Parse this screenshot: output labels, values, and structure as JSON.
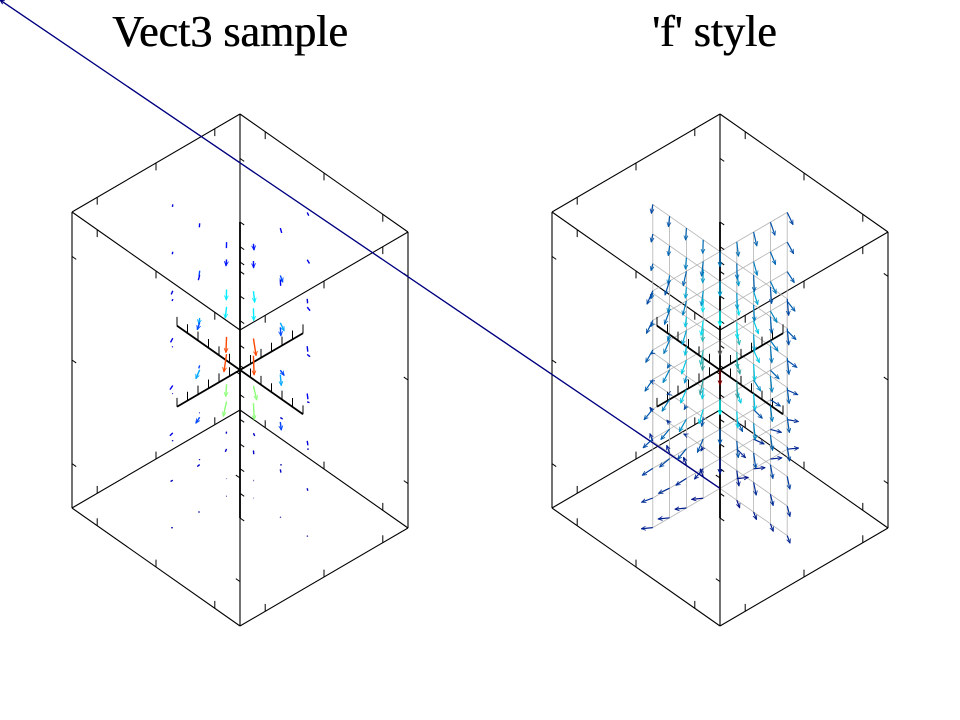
{
  "panels": [
    {
      "title": "Vect3 sample",
      "style": "default",
      "colors": [
        "#000080",
        "#0000ff",
        "#00ffff",
        "#ffff00",
        "#ff0000",
        "#800000"
      ]
    },
    {
      "title": "'f' style",
      "style": "f",
      "colors": [
        "#000080",
        "#00ffff",
        "#800000"
      ],
      "grid_color": "#b4b4b4"
    }
  ]
}
